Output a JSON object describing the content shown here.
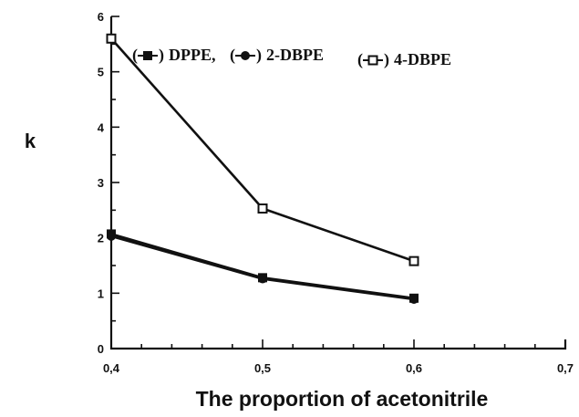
{
  "chart_data": {
    "type": "line",
    "title": "",
    "xlabel": "The proportion of acetonitrile",
    "ylabel": "k",
    "xlim": [
      0.4,
      0.7
    ],
    "ylim": [
      0,
      6
    ],
    "x_ticks": [
      "0,4",
      "0,5",
      "0,6",
      "0,7"
    ],
    "y_ticks": [
      "0",
      "1",
      "2",
      "3",
      "4",
      "5",
      "6"
    ],
    "grid": false,
    "legend_position": "top-center",
    "legend": [
      {
        "label": "DPPE,",
        "marker": "filled-square"
      },
      {
        "label": "2-DBPE",
        "marker": "filled-circle"
      },
      {
        "label": "4-DBPE",
        "marker": "hollow-square"
      }
    ],
    "series": [
      {
        "name": "4-DBPE",
        "marker": "hollow-square",
        "x": [
          0.4,
          0.5,
          0.6
        ],
        "y": [
          5.6,
          2.53,
          1.58
        ]
      },
      {
        "name": "DPPE",
        "marker": "filled-square",
        "x": [
          0.4,
          0.5,
          0.6
        ],
        "y": [
          2.07,
          1.28,
          0.91
        ]
      },
      {
        "name": "2-DBPE",
        "marker": "filled-circle",
        "x": [
          0.4,
          0.5,
          0.6
        ],
        "y": [
          2.03,
          1.26,
          0.89
        ]
      }
    ]
  }
}
